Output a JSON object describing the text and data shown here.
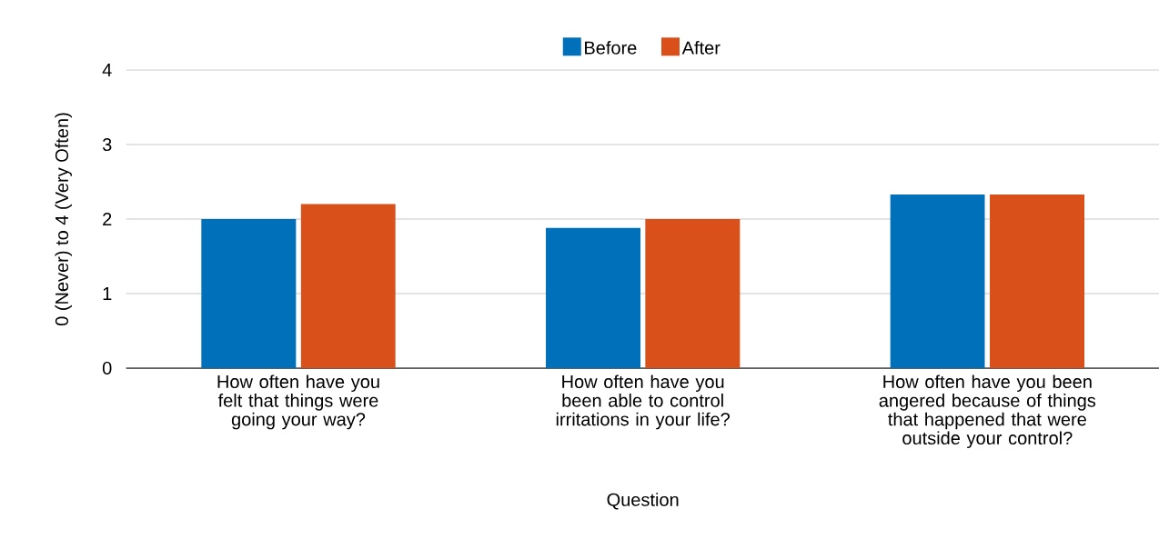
{
  "chart_data": {
    "type": "bar",
    "xlabel": "Question",
    "ylabel": "0 (Never) to 4 (Very Often)",
    "categories": [
      "How often have you felt that things were going your way?",
      "How often have you been able to control irritations in your life?",
      "How often have you been angered because of things that happened that were outside your control?"
    ],
    "series": [
      {
        "name": "Before",
        "color": "#0070ba",
        "values": [
          2.0,
          1.88,
          2.33
        ]
      },
      {
        "name": "After",
        "color": "#d9501b",
        "values": [
          2.2,
          2.0,
          2.33
        ]
      }
    ],
    "ylim": [
      0,
      4
    ],
    "yticks": [
      0,
      1,
      2,
      3,
      4
    ],
    "grid": "y",
    "legend": "top"
  }
}
